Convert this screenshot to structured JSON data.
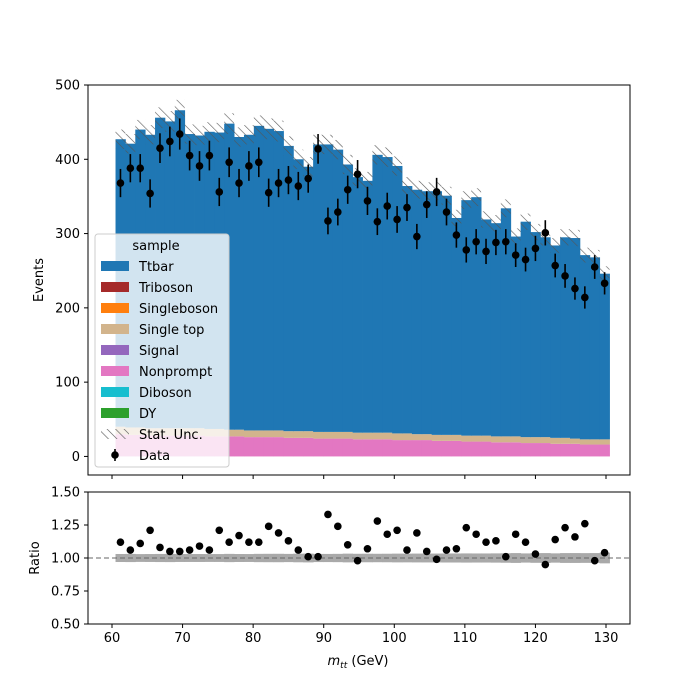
{
  "chart_data": {
    "type": "bar",
    "subtype": "stacked-histogram-with-ratio",
    "xlabel": "m_tt (GeV)",
    "ylabel_main": "Events",
    "ylabel_ratio": "Ratio",
    "xlim": [
      56.6,
      133.4
    ],
    "ylim_main": [
      -25,
      500
    ],
    "ylim_ratio": [
      0.5,
      1.5
    ],
    "xticks": [
      60,
      70,
      80,
      90,
      100,
      110,
      120,
      130
    ],
    "yticks_main": [
      0,
      100,
      200,
      300,
      400,
      500
    ],
    "yticks_ratio": [
      "0.50",
      "0.75",
      "1.00",
      "1.25",
      "1.50"
    ],
    "ratio_reference": 1.0,
    "legend_title": "sample",
    "legend_position": "center-left",
    "bin_edges": [
      60.5,
      61.9,
      63.3,
      64.7,
      66.1,
      67.5,
      68.9,
      70.3,
      71.7,
      73.1,
      74.5,
      75.9,
      77.3,
      78.7,
      80.1,
      81.5,
      82.9,
      84.3,
      85.7,
      87.1,
      88.5,
      89.9,
      91.3,
      92.7,
      94.1,
      95.5,
      96.9,
      98.3,
      99.7,
      101.1,
      102.5,
      103.9,
      105.3,
      106.7,
      108.1,
      109.5,
      110.9,
      112.3,
      113.7,
      115.1,
      116.5,
      117.9,
      119.3,
      120.7,
      122.1,
      123.5,
      124.9,
      126.3,
      127.7,
      129.1
    ],
    "series": [
      {
        "name": "Ttbar",
        "color": "#1f77b4",
        "values": [
          387,
          382,
          401,
          395,
          418,
          413,
          428,
          396,
          394,
          400,
          399,
          412,
          394,
          398,
          410,
          406,
          403,
          384,
          366,
          356,
          387,
          387,
          380,
          360,
          344,
          339,
          374,
          371,
          360,
          333,
          329,
          327,
          328,
          322,
          292,
          317,
          321,
          291,
          287,
          307,
          269,
          290,
          276,
          269,
          259,
          270,
          270,
          248,
          245,
          223
        ]
      },
      {
        "name": "Triboson",
        "color": "#a52a2a",
        "values": [
          0,
          0,
          0,
          0,
          0,
          0,
          0,
          0,
          0,
          0,
          0,
          0,
          0,
          0,
          0,
          0,
          0,
          0,
          0,
          0,
          0,
          0,
          0,
          0,
          0,
          0,
          0,
          0,
          0,
          0,
          0,
          0,
          0,
          0,
          0,
          0,
          0,
          0,
          0,
          0,
          0,
          0,
          0,
          0,
          0,
          0,
          0,
          0,
          0,
          0
        ]
      },
      {
        "name": "Singleboson",
        "color": "#ff7f0e",
        "values": [
          0,
          0,
          0,
          0,
          0,
          0,
          0,
          0,
          0,
          0,
          0,
          0,
          0,
          0,
          0,
          0,
          0,
          0,
          0,
          0,
          0,
          0,
          0,
          0,
          0,
          0,
          0,
          0,
          0,
          0,
          0,
          0,
          0,
          0,
          0,
          0,
          0,
          0,
          0,
          0,
          0,
          0,
          0,
          0,
          0,
          0,
          0,
          0,
          0,
          0
        ]
      },
      {
        "name": "Single top",
        "color": "#d2b48c",
        "values": [
          10,
          10,
          10,
          10,
          10,
          10,
          10,
          10,
          10,
          10,
          10,
          9,
          9,
          9,
          9,
          9,
          9,
          9,
          9,
          9,
          9,
          9,
          9,
          9,
          9,
          9,
          9,
          9,
          9,
          9,
          8,
          8,
          8,
          8,
          8,
          8,
          8,
          8,
          8,
          8,
          8,
          8,
          8,
          8,
          8,
          8,
          7,
          7,
          7,
          7
        ]
      },
      {
        "name": "Signal",
        "color": "#9467bd",
        "values": [
          0,
          0,
          0,
          0,
          0,
          0,
          0,
          0,
          0,
          0,
          0,
          0,
          0,
          0,
          0,
          0,
          0,
          0,
          0,
          0,
          0,
          0,
          0,
          0,
          0,
          0,
          0,
          0,
          0,
          0,
          0,
          0,
          0,
          0,
          0,
          0,
          0,
          0,
          0,
          0,
          0,
          0,
          0,
          0,
          0,
          0,
          0,
          0,
          0,
          0
        ]
      },
      {
        "name": "Nonprompt",
        "color": "#e377c2",
        "values": [
          30,
          29,
          29,
          28,
          28,
          28,
          28,
          28,
          28,
          27,
          27,
          27,
          27,
          26,
          26,
          26,
          26,
          25,
          25,
          25,
          24,
          24,
          24,
          24,
          23,
          23,
          23,
          23,
          22,
          22,
          22,
          22,
          21,
          21,
          21,
          20,
          20,
          20,
          19,
          19,
          19,
          18,
          18,
          18,
          17,
          17,
          17,
          16,
          16,
          16
        ]
      },
      {
        "name": "Diboson",
        "color": "#17becf",
        "values": [
          0,
          0,
          0,
          0,
          0,
          0,
          0,
          0,
          0,
          0,
          0,
          0,
          0,
          0,
          0,
          0,
          0,
          0,
          0,
          0,
          0,
          0,
          0,
          0,
          0,
          0,
          0,
          0,
          0,
          0,
          0,
          0,
          0,
          0,
          0,
          0,
          0,
          0,
          0,
          0,
          0,
          0,
          0,
          0,
          0,
          0,
          0,
          0,
          0,
          0
        ]
      },
      {
        "name": "DY",
        "color": "#2ca02c",
        "values": [
          0,
          0,
          0,
          0,
          0,
          0,
          0,
          0,
          0,
          0,
          0,
          0,
          0,
          0,
          0,
          0,
          0,
          0,
          0,
          0,
          0,
          0,
          0,
          0,
          0,
          0,
          0,
          0,
          0,
          0,
          0,
          0,
          0,
          0,
          0,
          0,
          0,
          0,
          0,
          0,
          0,
          0,
          0,
          0,
          0,
          0,
          0,
          0,
          0,
          0
        ]
      }
    ],
    "stat_unc": {
      "label": "Stat. Unc.",
      "values": [
        13,
        13,
        13,
        13,
        14,
        14,
        14,
        13,
        13,
        13,
        13,
        14,
        13,
        13,
        14,
        14,
        14,
        13,
        13,
        13,
        13,
        13,
        13,
        13,
        12,
        12,
        13,
        13,
        13,
        12,
        12,
        12,
        12,
        12,
        11,
        12,
        12,
        11,
        11,
        12,
        11,
        11,
        11,
        11,
        10,
        11,
        11,
        10,
        10,
        10
      ]
    },
    "data": {
      "label": "Data",
      "color": "#000000",
      "x": [
        61.2,
        62.6,
        64.0,
        65.4,
        66.8,
        68.2,
        69.6,
        71.0,
        72.4,
        73.8,
        75.2,
        76.6,
        78.0,
        79.4,
        80.8,
        82.2,
        83.6,
        85.0,
        86.4,
        87.8,
        89.2,
        90.6,
        92.0,
        93.4,
        94.8,
        96.2,
        97.6,
        99.0,
        100.4,
        101.8,
        103.2,
        104.6,
        106.0,
        107.4,
        108.8,
        110.2,
        111.6,
        113.0,
        114.4,
        115.8,
        117.2,
        118.6,
        120.0,
        121.4,
        122.8,
        124.2,
        125.6,
        127.0,
        128.4,
        129.8
      ],
      "y": [
        368,
        388,
        388,
        354,
        415,
        424,
        434,
        405,
        391,
        405,
        356,
        396,
        368,
        391,
        396,
        355,
        368,
        372,
        364,
        374,
        414,
        317,
        329,
        359,
        380,
        344,
        316,
        337,
        319,
        335,
        296,
        339,
        356,
        329,
        298,
        278,
        289,
        276,
        288,
        289,
        271,
        265,
        280,
        301,
        257,
        243,
        226,
        214,
        255,
        233
      ],
      "yerr": [
        19,
        19,
        19,
        19,
        20,
        20,
        21,
        20,
        20,
        20,
        19,
        20,
        19,
        20,
        20,
        19,
        19,
        19,
        19,
        19,
        20,
        18,
        18,
        19,
        19,
        19,
        18,
        18,
        18,
        18,
        17,
        18,
        19,
        18,
        17,
        17,
        17,
        17,
        17,
        17,
        16,
        16,
        17,
        17,
        16,
        16,
        15,
        15,
        16,
        15
      ]
    },
    "ratio": {
      "x": [
        61.2,
        62.6,
        64.0,
        65.4,
        66.8,
        68.2,
        69.6,
        71.0,
        72.4,
        73.8,
        75.2,
        76.6,
        78.0,
        79.4,
        80.8,
        82.2,
        83.6,
        85.0,
        86.4,
        87.8,
        89.2,
        90.6,
        92.0,
        93.4,
        94.8,
        96.2,
        97.6,
        99.0,
        100.4,
        101.8,
        103.2,
        104.6,
        106.0,
        107.4,
        108.8,
        110.2,
        111.6,
        113.0,
        114.4,
        115.8,
        117.2,
        118.6,
        120.0,
        121.4,
        122.8,
        124.2,
        125.6,
        127.0,
        128.4,
        129.8
      ],
      "values": [
        1.12,
        1.06,
        1.11,
        1.21,
        1.08,
        1.05,
        1.05,
        1.06,
        1.09,
        1.06,
        1.21,
        1.12,
        1.17,
        1.12,
        1.12,
        1.24,
        1.19,
        1.13,
        1.06,
        1.01,
        1.01,
        1.33,
        1.24,
        1.1,
        0.98,
        1.07,
        1.28,
        1.18,
        1.21,
        1.06,
        1.19,
        1.05,
        0.99,
        1.06,
        1.07,
        1.23,
        1.18,
        1.12,
        1.13,
        1.01,
        1.18,
        1.12,
        1.03,
        0.95,
        1.14,
        1.23,
        1.16,
        1.26,
        0.98,
        1.04
      ]
    }
  }
}
